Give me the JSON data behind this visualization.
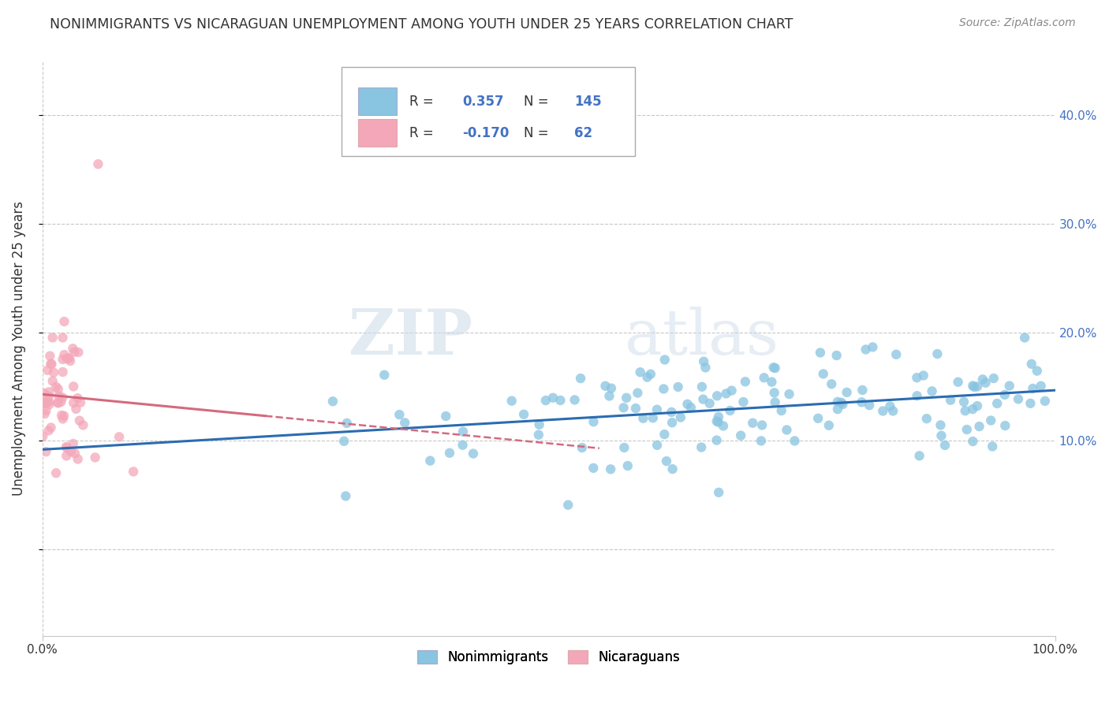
{
  "title": "NONIMMIGRANTS VS NICARAGUAN UNEMPLOYMENT AMONG YOUTH UNDER 25 YEARS CORRELATION CHART",
  "source": "Source: ZipAtlas.com",
  "ylabel": "Unemployment Among Youth under 25 years",
  "xlim": [
    0.0,
    1.0
  ],
  "ylim": [
    -0.08,
    0.45
  ],
  "yticks": [
    0.0,
    0.1,
    0.2,
    0.3,
    0.4
  ],
  "ytick_labels_right": [
    "",
    "10.0%",
    "20.0%",
    "30.0%",
    "40.0%"
  ],
  "xtick_left_label": "0.0%",
  "xtick_right_label": "100.0%",
  "blue_color": "#89c4e1",
  "pink_color": "#f4a7b9",
  "blue_line_color": "#2b6cb0",
  "pink_line_color": "#d46a7e",
  "legend_r_blue": "0.357",
  "legend_n_blue": "145",
  "legend_r_pink": "-0.170",
  "legend_n_pink": "62",
  "legend_label_blue": "Nonimmigrants",
  "legend_label_pink": "Nicaraguans",
  "watermark_zip": "ZIP",
  "watermark_atlas": "atlas",
  "blue_n": 145,
  "pink_n": 62,
  "background_color": "#ffffff",
  "grid_color": "#c8c8c8",
  "value_color": "#4472c4",
  "text_color": "#333333"
}
